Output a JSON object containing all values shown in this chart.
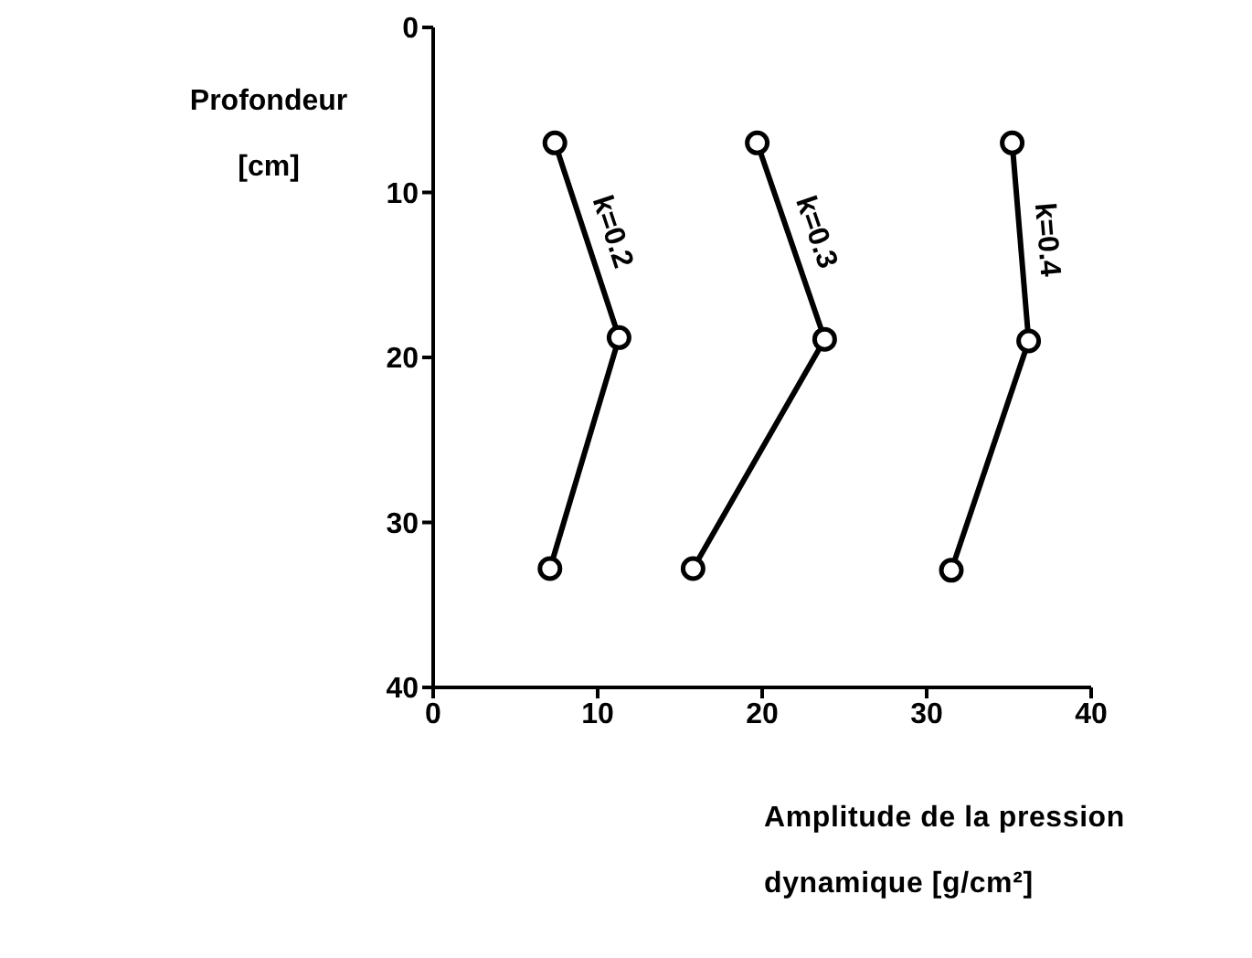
{
  "chart_data": {
    "type": "line",
    "ylabel": "Profondeur [cm]",
    "xlabel": "Amplitude de la pression dynamique [g/cm²]",
    "xlim": [
      0,
      40
    ],
    "xticks": [
      0,
      10,
      20,
      30,
      40
    ],
    "ylim": [
      40,
      0
    ],
    "yticks": [
      0,
      10,
      20,
      30,
      40
    ],
    "grid": false,
    "legend": false,
    "marker": "circle",
    "line_style": "solid",
    "series": [
      {
        "name": "k=0.2",
        "color": "#000000",
        "x": [
          7.4,
          11.3,
          7.1
        ],
        "values": [
          7.0,
          18.8,
          32.8
        ]
      },
      {
        "name": "k=0.3",
        "color": "#000000",
        "x": [
          19.7,
          23.8,
          15.8
        ],
        "values": [
          7.0,
          18.9,
          32.8
        ]
      },
      {
        "name": "k=0.4",
        "color": "#000000",
        "x": [
          35.2,
          36.2,
          31.5
        ],
        "values": [
          7.0,
          19.0,
          32.9
        ]
      }
    ]
  }
}
